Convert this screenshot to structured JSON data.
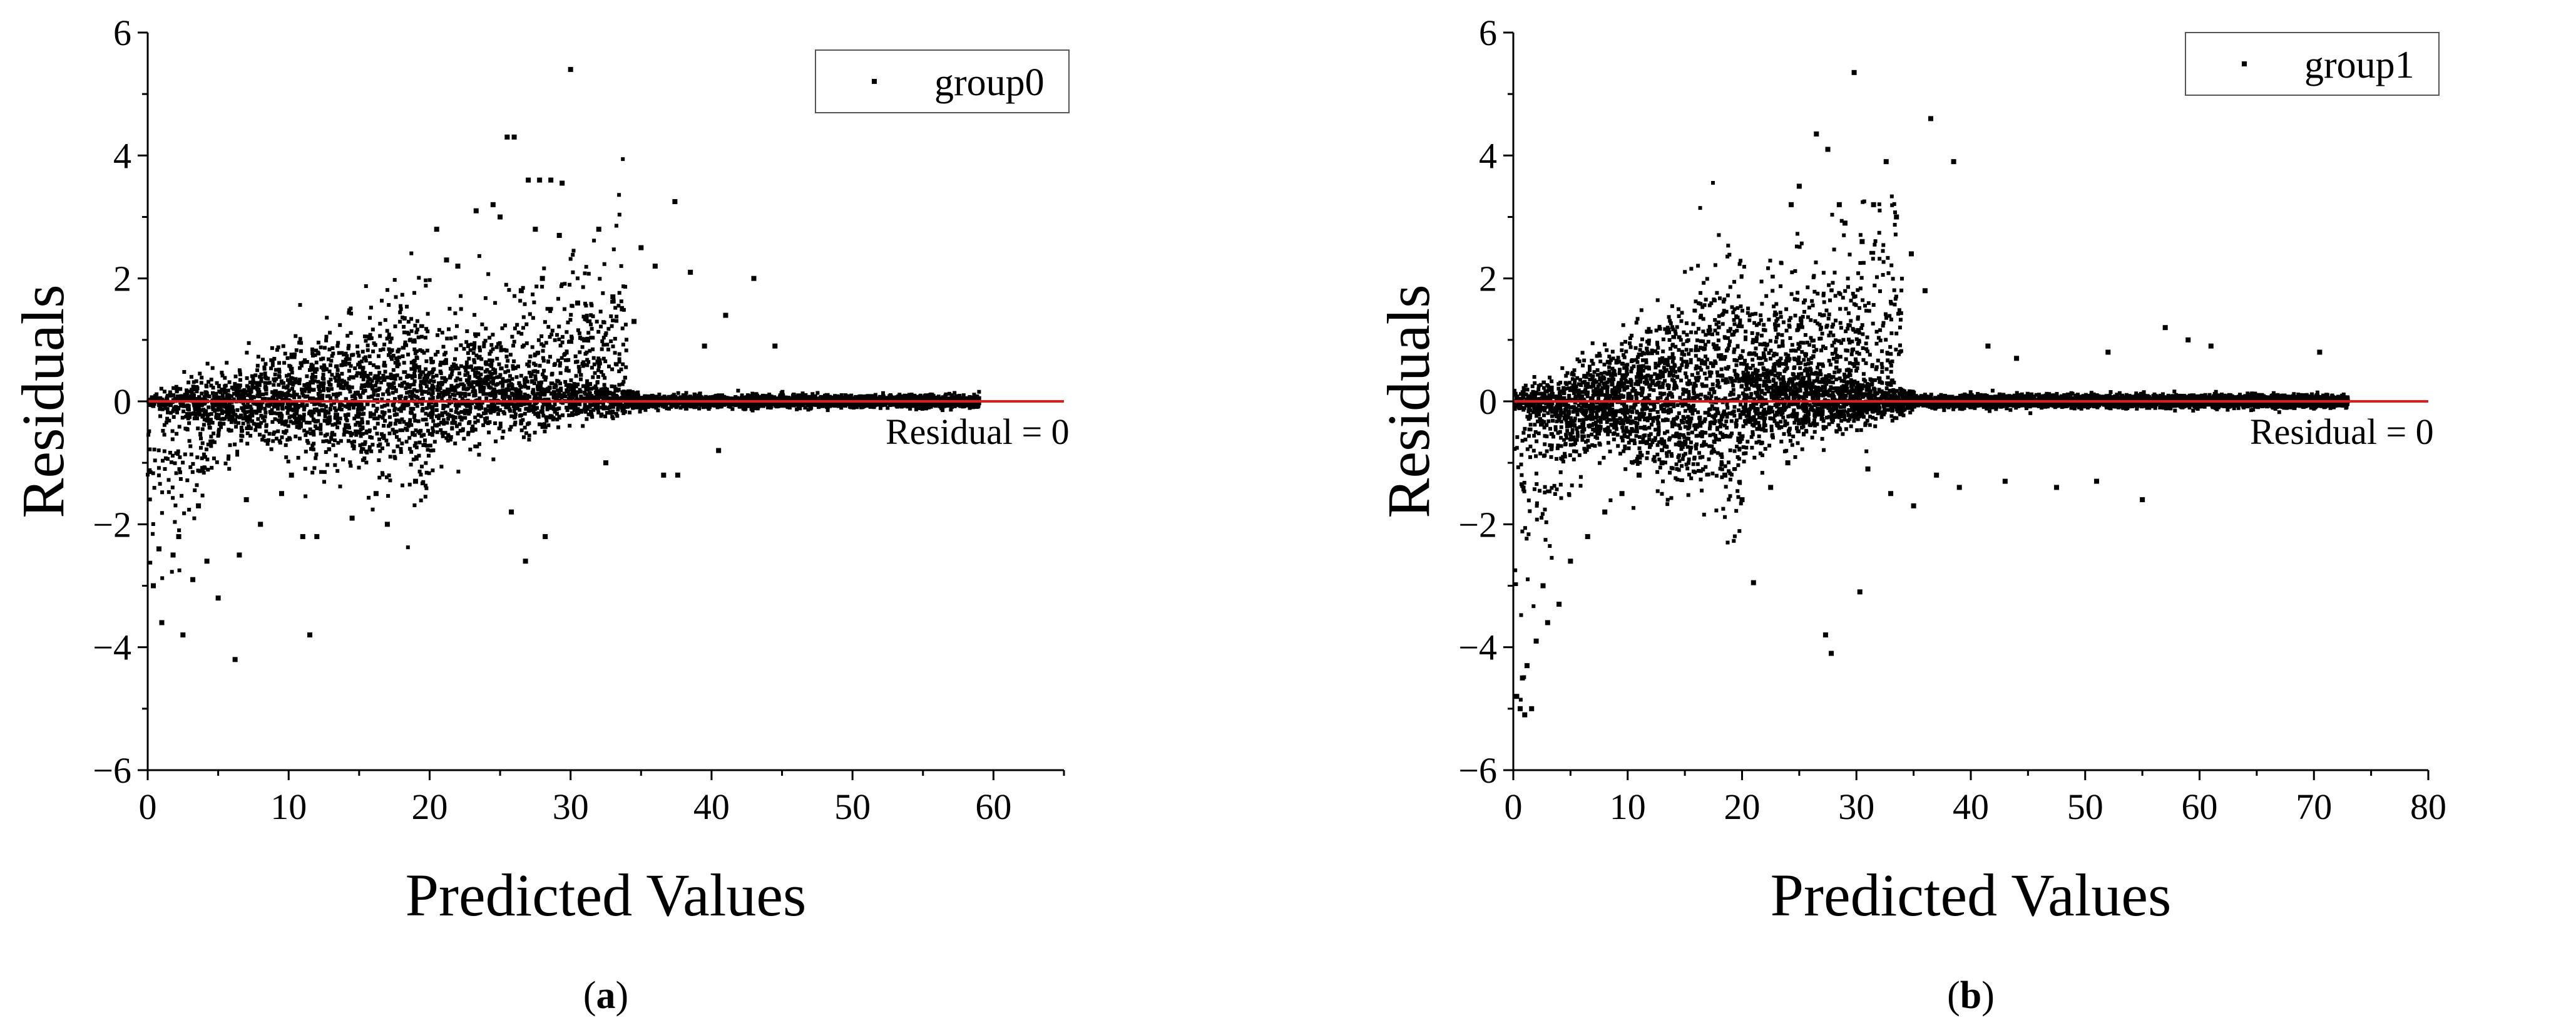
{
  "panels": [
    {
      "panel_label": "a",
      "chart_data": {
        "type": "scatter",
        "title": "",
        "xlabel": "Predicted Values",
        "ylabel": "Residuals",
        "xlim": [
          0,
          65
        ],
        "ylim": [
          -6,
          6
        ],
        "xticks": [
          0,
          10,
          20,
          30,
          40,
          50,
          60
        ],
        "xtick_labels": [
          "0",
          "10",
          "20",
          "30",
          "40",
          "50",
          "60"
        ],
        "yticks": [
          -6,
          -4,
          -2,
          0,
          2,
          4,
          6
        ],
        "ytick_labels": [
          "−6",
          "−4",
          "−2",
          "0",
          "2",
          "4",
          "6"
        ],
        "grid": false,
        "legend": {
          "location": "top-right",
          "entries": [
            "group0"
          ]
        },
        "reference_line": {
          "y": 0,
          "label": "Residual = 0",
          "color": "#e31a1c"
        },
        "series": [
          {
            "name": "group0",
            "color": "#000000",
            "marker": "square",
            "outliers": [
              [
                30.0,
                5.4
              ],
              [
                25.5,
                4.3
              ],
              [
                26.0,
                4.3
              ],
              [
                27.0,
                3.6
              ],
              [
                27.8,
                3.6
              ],
              [
                28.6,
                3.6
              ],
              [
                29.4,
                3.55
              ],
              [
                37.4,
                3.25
              ],
              [
                23.3,
                3.1
              ],
              [
                24.5,
                3.2
              ],
              [
                25.0,
                3.0
              ],
              [
                27.5,
                2.8
              ],
              [
                29.2,
                2.7
              ],
              [
                32.0,
                2.8
              ],
              [
                35.0,
                2.5
              ],
              [
                36.0,
                2.2
              ],
              [
                38.5,
                2.1
              ],
              [
                43.0,
                2.0
              ],
              [
                41.0,
                1.4
              ],
              [
                33.0,
                1.7
              ],
              [
                34.5,
                1.3
              ],
              [
                31.0,
                1.0
              ],
              [
                39.5,
                0.9
              ],
              [
                44.5,
                0.9
              ],
              [
                22.0,
                2.2
              ],
              [
                20.5,
                2.8
              ],
              [
                21.2,
                2.3
              ],
              [
                28.0,
                2.0
              ],
              [
                30.5,
                1.6
              ],
              [
                26.5,
                1.8
              ],
              [
                6.2,
                -4.2
              ],
              [
                11.5,
                -3.8
              ],
              [
                2.5,
                -3.8
              ],
              [
                1.0,
                -3.6
              ],
              [
                0.4,
                -3.0
              ],
              [
                5.0,
                -3.2
              ],
              [
                3.2,
                -2.9
              ],
              [
                1.8,
                -2.5
              ],
              [
                4.2,
                -2.6
              ],
              [
                2.2,
                -2.2
              ],
              [
                0.8,
                -2.4
              ],
              [
                11.0,
                -2.2
              ],
              [
                12.0,
                -2.2
              ],
              [
                14.5,
                -1.9
              ],
              [
                17.0,
                -2.0
              ],
              [
                25.8,
                -1.8
              ],
              [
                26.8,
                -2.6
              ],
              [
                28.2,
                -2.2
              ],
              [
                36.6,
                -1.2
              ],
              [
                37.6,
                -1.2
              ],
              [
                8.0,
                -2.0
              ],
              [
                9.5,
                -1.5
              ],
              [
                7.0,
                -1.6
              ],
              [
                10.2,
                -1.2
              ],
              [
                16.2,
                -1.5
              ],
              [
                19.0,
                -1.3
              ],
              [
                32.5,
                -1.0
              ],
              [
                40.5,
                -0.8
              ],
              [
                6.5,
                -2.5
              ],
              [
                3.6,
                -1.7
              ]
            ],
            "band_description": "about 6000 points densely clustered along the zero line from x=0 to x≈59"
          }
        ]
      }
    },
    {
      "panel_label": "b",
      "chart_data": {
        "type": "scatter",
        "title": "",
        "xlabel": "Predicted Values",
        "ylabel": "Residuals",
        "xlim": [
          0,
          80
        ],
        "ylim": [
          -6,
          6
        ],
        "xticks": [
          0,
          10,
          20,
          30,
          40,
          50,
          60,
          70,
          80
        ],
        "xtick_labels": [
          "0",
          "10",
          "20",
          "30",
          "40",
          "50",
          "60",
          "70",
          "80"
        ],
        "yticks": [
          -6,
          -4,
          -2,
          0,
          2,
          4,
          6
        ],
        "ytick_labels": [
          "−6",
          "−4",
          "−2",
          "0",
          "2",
          "4",
          "6"
        ],
        "grid": false,
        "legend": {
          "location": "top-right",
          "entries": [
            "group1"
          ]
        },
        "reference_line": {
          "y": 0,
          "label": "Residual = 0",
          "color": "#e31a1c"
        },
        "series": [
          {
            "name": "group1",
            "color": "#000000",
            "marker": "square",
            "outliers": [
              [
                29.8,
                5.35
              ],
              [
                36.5,
                4.6
              ],
              [
                26.5,
                4.35
              ],
              [
                38.5,
                3.9
              ],
              [
                32.6,
                3.9
              ],
              [
                31.5,
                3.2
              ],
              [
                33.5,
                3.0
              ],
              [
                28.5,
                3.2
              ],
              [
                27.5,
                4.1
              ],
              [
                25.0,
                3.5
              ],
              [
                30.5,
                2.6
              ],
              [
                34.8,
                2.4
              ],
              [
                36.0,
                1.8
              ],
              [
                24.3,
                3.2
              ],
              [
                29.0,
                2.9
              ],
              [
                41.5,
                0.9
              ],
              [
                57.0,
                1.2
              ],
              [
                59.0,
                1.0
              ],
              [
                61.0,
                0.9
              ],
              [
                70.5,
                0.8
              ],
              [
                44.0,
                0.7
              ],
              [
                52.0,
                0.8
              ],
              [
                21.0,
                -2.95
              ],
              [
                30.3,
                -3.1
              ],
              [
                27.3,
                -3.8
              ],
              [
                27.8,
                -4.1
              ],
              [
                0.6,
                -5.0
              ],
              [
                1.0,
                -5.1
              ],
              [
                1.6,
                -5.0
              ],
              [
                0.3,
                -4.8
              ],
              [
                0.8,
                -4.5
              ],
              [
                1.2,
                -4.3
              ],
              [
                2.0,
                -3.9
              ],
              [
                3.0,
                -3.6
              ],
              [
                4.0,
                -3.3
              ],
              [
                2.6,
                -3.0
              ],
              [
                5.0,
                -2.6
              ],
              [
                6.5,
                -2.2
              ],
              [
                8.0,
                -1.8
              ],
              [
                9.5,
                -1.5
              ],
              [
                11.0,
                -1.2
              ],
              [
                13.0,
                -1.0
              ],
              [
                35.0,
                -1.7
              ],
              [
                39.0,
                -1.4
              ],
              [
                43.0,
                -1.3
              ],
              [
                47.5,
                -1.4
              ],
              [
                51.0,
                -1.3
              ],
              [
                55.0,
                -1.6
              ],
              [
                18.5,
                -1.2
              ],
              [
                22.5,
                -1.4
              ],
              [
                24.0,
                -1.0
              ],
              [
                31.0,
                -1.1
              ],
              [
                33.0,
                -1.5
              ],
              [
                37.0,
                -1.2
              ],
              [
                20.0,
                -1.6
              ]
            ],
            "band_description": "about 8000 points densely clustered along the zero line from x=0 to x≈73"
          }
        ]
      }
    }
  ]
}
